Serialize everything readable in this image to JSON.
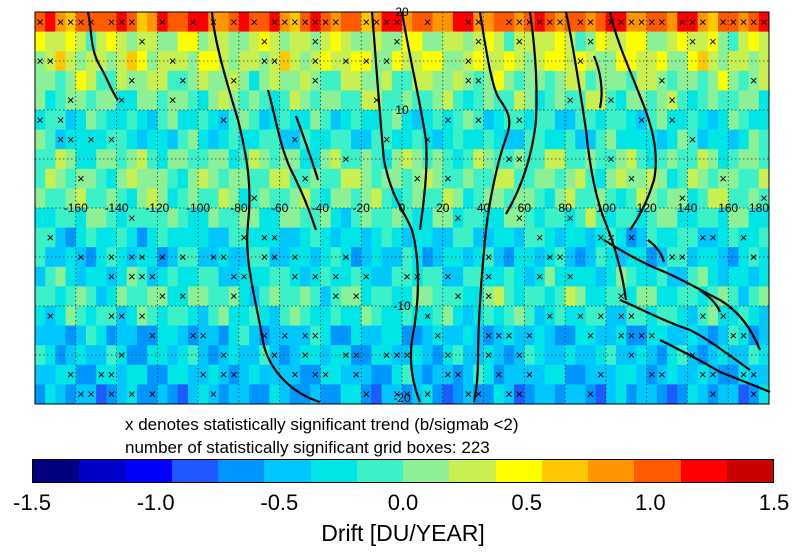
{
  "chart_data": {
    "type": "heatmap",
    "title": "",
    "xlabel": "",
    "ylabel": "",
    "x_tick_labels": [
      "-160",
      "-140",
      "-120",
      "-100",
      "-80",
      "-60",
      "-40",
      "-20",
      "0",
      "20",
      "40",
      "60",
      "80",
      "100",
      "120",
      "140",
      "160",
      "180"
    ],
    "y_tick_labels": [
      "20",
      "10",
      "-10",
      "-20"
    ],
    "xlim": [
      -180,
      180
    ],
    "ylim": [
      -20,
      20
    ],
    "grid": "dotted",
    "colorbar": {
      "label": "Drift [DU/YEAR]",
      "min": -1.5,
      "max": 1.5,
      "tick_labels": [
        "-1.5",
        "-1.0",
        "-0.5",
        "0.0",
        "0.5",
        "1.0",
        "1.5"
      ],
      "colors": [
        "#00007f",
        "#0000c8",
        "#0000ff",
        "#1e5aff",
        "#0096ff",
        "#00c8ff",
        "#00e6e6",
        "#3cf0c8",
        "#8cf096",
        "#c8f050",
        "#ffff00",
        "#ffc800",
        "#ff9600",
        "#ff5a00",
        "#ff0000",
        "#c80000"
      ]
    },
    "mean_drift_by_latitude_band": [
      {
        "lat": 19,
        "value": 1.0
      },
      {
        "lat": 17,
        "value": 0.25
      },
      {
        "lat": 15,
        "value": 0.3
      },
      {
        "lat": 13,
        "value": 0.1
      },
      {
        "lat": 11,
        "value": 0.0
      },
      {
        "lat": 9,
        "value": -0.2
      },
      {
        "lat": 7,
        "value": -0.25
      },
      {
        "lat": 5,
        "value": 0.0
      },
      {
        "lat": 3,
        "value": 0.05
      },
      {
        "lat": 1,
        "value": 0.0
      },
      {
        "lat": -1,
        "value": -0.1
      },
      {
        "lat": -3,
        "value": -0.3
      },
      {
        "lat": -5,
        "value": -0.35
      },
      {
        "lat": -7,
        "value": -0.25
      },
      {
        "lat": -9,
        "value": -0.1
      },
      {
        "lat": -11,
        "value": -0.2
      },
      {
        "lat": -13,
        "value": -0.45
      },
      {
        "lat": -15,
        "value": -0.4
      },
      {
        "lat": -17,
        "value": -0.45
      },
      {
        "lat": -19,
        "value": -0.55
      }
    ],
    "significance_marker": "×"
  },
  "captions": {
    "line1": "x denotes statistically significant trend (b/sigmab <2)",
    "line2": "number of statistically significant grid boxes:  223"
  }
}
